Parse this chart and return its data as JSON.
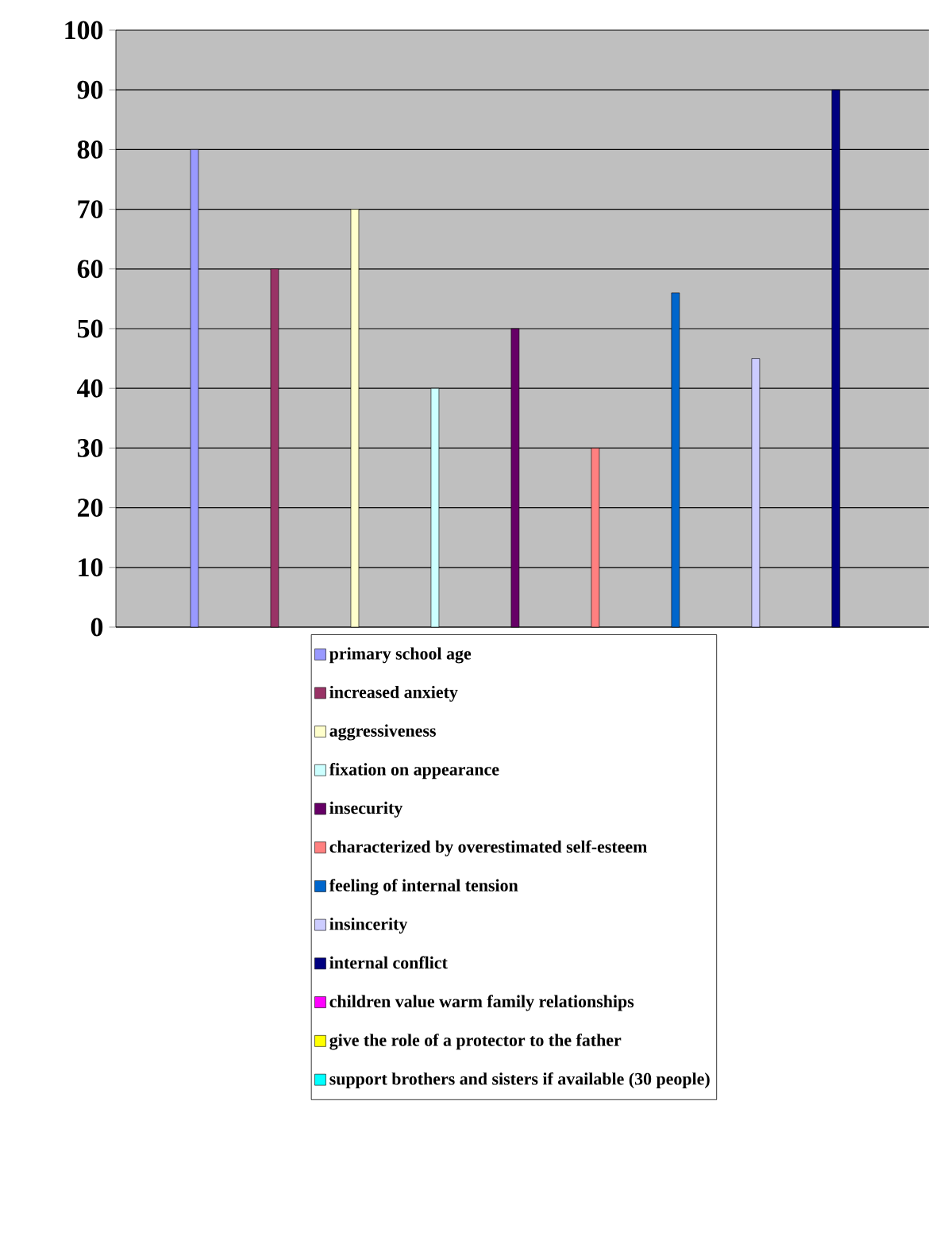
{
  "chart_data": {
    "type": "bar",
    "categories": [
      null
    ],
    "ylim": [
      0,
      100
    ],
    "yticks": [
      0,
      10,
      20,
      30,
      40,
      50,
      60,
      70,
      80,
      90,
      100
    ],
    "grid": "y",
    "legend": "bottom",
    "series": [
      {
        "name": "primary school age",
        "color": "#9999ff",
        "values": [
          80
        ]
      },
      {
        "name": "increased anxiety",
        "color": "#993366",
        "values": [
          60
        ]
      },
      {
        "name": "aggressiveness",
        "color": "#ffffcc",
        "values": [
          70
        ]
      },
      {
        "name": "fixation on appearance",
        "color": "#ccffff",
        "values": [
          40
        ]
      },
      {
        "name": "insecurity",
        "color": "#660066",
        "values": [
          50
        ]
      },
      {
        "name": "characterized by overestimated self-esteem",
        "color": "#ff8080",
        "values": [
          30
        ]
      },
      {
        "name": "feeling of internal tension",
        "color": "#0066cc",
        "values": [
          56
        ]
      },
      {
        "name": "insincerity",
        "color": "#ccccff",
        "values": [
          45
        ]
      },
      {
        "name": "internal conflict",
        "color": "#000080",
        "values": [
          90
        ]
      },
      {
        "name": "children value warm family relationships",
        "color": "#ff00ff",
        "values": [
          null
        ]
      },
      {
        "name": "give the role of a protector to the father",
        "color": "#ffff00",
        "values": [
          null
        ]
      },
      {
        "name": "support brothers and sisters if available (30 people)",
        "color": "#00ffff",
        "values": [
          null
        ]
      }
    ]
  }
}
